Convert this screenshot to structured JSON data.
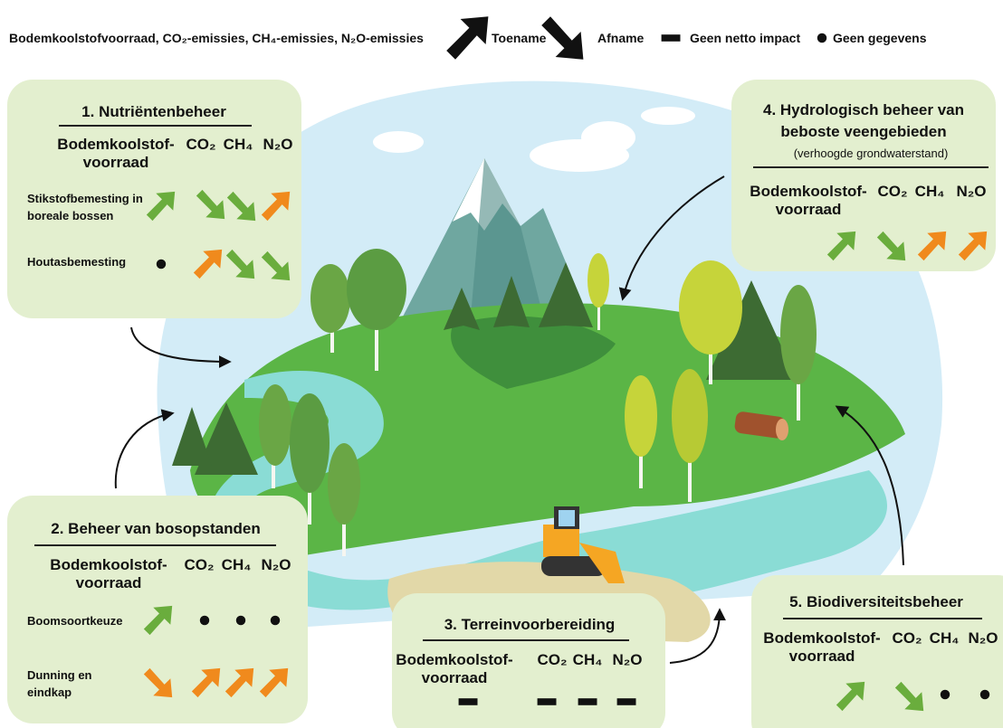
{
  "legend": {
    "text": "Bodemkoolstofvoorraad, CO₂-emissies, CH₄-emissies, N₂O-emissies",
    "items": [
      "Toename",
      "Afname",
      "Geen netto impact",
      "Geen gegevens"
    ]
  },
  "panels": [
    {
      "title": "1. Nutriëntenbeheer",
      "columns": [
        "Bodemkoolstof-voorraad",
        "CO₂",
        "CH₄",
        "N₂O"
      ],
      "rows": [
        "Stikstofbemesting in boreale bossen",
        "Houtasbemesting"
      ]
    },
    {
      "title": "2. Beheer van bosopstanden",
      "columns": [
        "Bodemkoolstof-voorraad",
        "CO₂",
        "CH₄",
        "N₂O"
      ],
      "rows": [
        "Boomsoortkeuze",
        "Dunning en eindkap"
      ]
    },
    {
      "title": "3. Terreinvoorbereiding",
      "columns": [
        "Bodemkoolstof-voorraad",
        "CO₂",
        "CH₄",
        "N₂O"
      ]
    },
    {
      "title": "4. Hydrologisch beheer van beboste veengebieden",
      "subtitle": "(verhoogde grondwaterstand)",
      "columns": [
        "Bodemkoolstof-voorraad",
        "CO₂",
        "CH₄",
        "N₂O"
      ]
    },
    {
      "title": "5. Biodiversiteitsbeheer",
      "columns": [
        "Bodemkoolstof-voorraad",
        "CO₂",
        "CH₄",
        "N₂O"
      ]
    }
  ]
}
